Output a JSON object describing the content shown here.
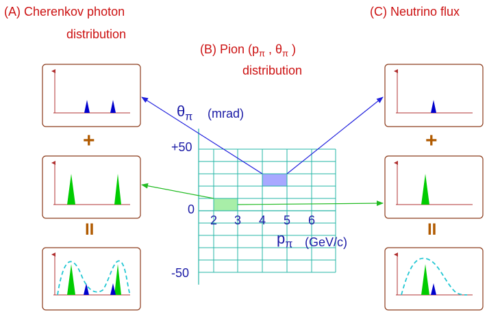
{
  "titles": {
    "a_line1": "(A)   Cherenkov photon",
    "a_line2": "distribution",
    "b_line1": "(B)   Pion (p",
    "b_sub_pi": "π",
    "b_theta": "θ",
    "b_close": ")",
    "b_line2": "distribution",
    "c_line1": "(C)   Neutrino flux"
  },
  "axis": {
    "theta": "θ",
    "pi_sub": "π",
    "theta_unit": "(mrad)",
    "p": "p",
    "p_unit": "(GeV/c)",
    "y_ticks": [
      "+50",
      "0",
      "-50"
    ],
    "x_ticks": [
      "2",
      "3",
      "4",
      "5",
      "6"
    ]
  },
  "operators": {
    "plus": "+",
    "equals": "II"
  },
  "colors": {
    "title_red": "#cc1111",
    "axis_blue": "#1a1aa6",
    "panel_border": "#8b3a1a",
    "panel_axis": "#b03030",
    "grid": "#22b5a5",
    "peak_blue": "#0000cc",
    "peak_green": "#00cc00",
    "dashed": "#22c7d3",
    "cell_blue": "#a8a8ff",
    "cell_green": "#a8eea8",
    "arrow_blue": "#2222dd",
    "arrow_green": "#22bb22",
    "operator_brown": "#b05a00"
  }
}
